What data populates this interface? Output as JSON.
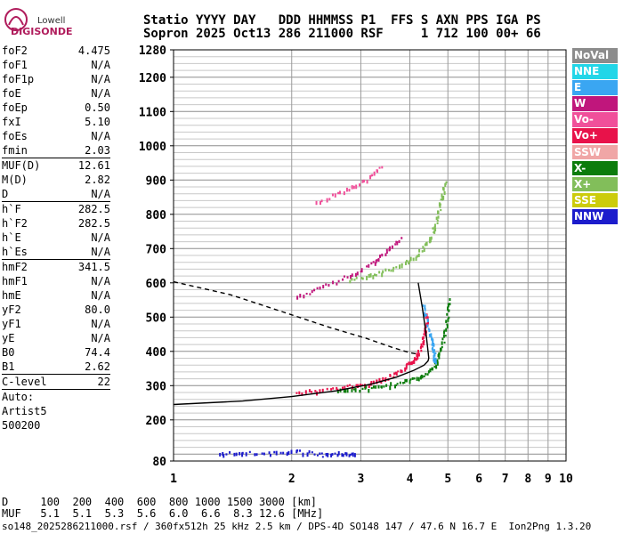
{
  "logo": {
    "line1": "Lowell",
    "line2": "DIGISONDE"
  },
  "header": {
    "labels": "Statio YYYY DAY   DDD HHMMSS P1  FFS S AXN PPS IGA PS",
    "values": "Sopron 2025 Oct13 286 211000 RSF     1 712 100 00+ 66"
  },
  "params": {
    "group1": [
      {
        "name": "foF2",
        "value": "4.475"
      },
      {
        "name": "foF1",
        "value": "N/A"
      },
      {
        "name": "foF1p",
        "value": "N/A"
      },
      {
        "name": "foE",
        "value": "N/A"
      },
      {
        "name": "foEp",
        "value": "0.50"
      },
      {
        "name": "fxI",
        "value": "5.10"
      },
      {
        "name": "foEs",
        "value": "N/A"
      },
      {
        "name": "fmin",
        "value": "2.03"
      }
    ],
    "group2": [
      {
        "name": "MUF(D)",
        "value": "12.61"
      },
      {
        "name": "M(D)",
        "value": "2.82"
      },
      {
        "name": "D",
        "value": "N/A"
      }
    ],
    "group3": [
      {
        "name": "h`F",
        "value": "282.5"
      },
      {
        "name": "h`F2",
        "value": "282.5"
      },
      {
        "name": "h`E",
        "value": "N/A"
      },
      {
        "name": "h`Es",
        "value": "N/A"
      }
    ],
    "group4": [
      {
        "name": "hmF2",
        "value": "341.5"
      },
      {
        "name": "hmF1",
        "value": "N/A"
      },
      {
        "name": "hmE",
        "value": "N/A"
      },
      {
        "name": "yF2",
        "value": "80.0"
      },
      {
        "name": "yF1",
        "value": "N/A"
      },
      {
        "name": "yE",
        "value": "N/A"
      },
      {
        "name": "B0",
        "value": "74.4"
      },
      {
        "name": "B1",
        "value": "2.62"
      }
    ],
    "group5": [
      {
        "name": "C-level",
        "value": "22"
      }
    ],
    "auto_label": "Auto:",
    "artist": "Artist5",
    "artist_version": "500200"
  },
  "legend": [
    {
      "label": "NoVal",
      "color": "#8c8c8c"
    },
    {
      "label": "NNE",
      "color": "#22d6e8"
    },
    {
      "label": "E",
      "color": "#3aa6f2"
    },
    {
      "label": "W",
      "color": "#c0167c"
    },
    {
      "label": "Vo-",
      "color": "#f0509a"
    },
    {
      "label": "Vo+",
      "color": "#e8124a"
    },
    {
      "label": "SSW",
      "color": "#f0a6a6"
    },
    {
      "label": "X-",
      "color": "#0c7c0c"
    },
    {
      "label": "X+",
      "color": "#82be5a"
    },
    {
      "label": "SSE",
      "color": "#cccc0c"
    },
    {
      "label": "NNW",
      "color": "#1c1ccc"
    }
  ],
  "muf_table": {
    "d_row": "D     100  200  400  600  800 1000 1500 3000 [km]",
    "muf_row": "MUF   5.1  5.1  5.3  5.6  6.0  6.6  8.3 12.6 [MHz]"
  },
  "footer": "so148_2025286211000.rsf / 360fx512h 25 kHz 2.5 km / DPS-4D SO148 147 / 47.6 N 16.7 E  Ion2Png 1.3.20",
  "chart_data": {
    "type": "scatter",
    "x_scale": "log",
    "xlim": [
      1,
      10
    ],
    "ylim": [
      80,
      1280
    ],
    "x_ticks": [
      "1",
      "2",
      "3",
      "4",
      "5",
      "6",
      "7",
      "8",
      "9",
      "10"
    ],
    "y_ticks": [
      "80",
      "200",
      "300",
      "400",
      "500",
      "600",
      "700",
      "800",
      "900",
      "1000",
      "1100",
      "1200",
      "1280"
    ],
    "grid": true,
    "series": [
      {
        "name": "Vo+",
        "color": "#e8124a",
        "x": [
          2.05,
          2.4,
          2.8,
          3.2,
          3.5,
          3.8,
          4.05,
          4.2,
          4.3,
          4.38,
          4.42
        ],
        "y": [
          282,
          290,
          300,
          312,
          325,
          345,
          375,
          400,
          430,
          470,
          520
        ]
      },
      {
        "name": "X-",
        "color": "#0c7c0c",
        "x": [
          2.6,
          3.0,
          3.4,
          3.8,
          4.2,
          4.5,
          4.7,
          4.85,
          4.95,
          5.02
        ],
        "y": [
          287,
          293,
          300,
          312,
          325,
          345,
          380,
          430,
          490,
          560
        ]
      },
      {
        "name": "W",
        "color": "#c0167c",
        "x": [
          2.05,
          2.4,
          2.8,
          3.2,
          3.5,
          3.8
        ],
        "y": [
          563,
          590,
          625,
          660,
          695,
          735
        ]
      },
      {
        "name": "Vo-",
        "color": "#f0509a",
        "x": [
          2.3,
          2.7,
          3.1,
          3.4
        ],
        "y": [
          838,
          870,
          905,
          945
        ]
      },
      {
        "name": "X+",
        "color": "#82be5a",
        "x": [
          2.8,
          3.2,
          3.6,
          4.0,
          4.3,
          4.55,
          4.7,
          4.82,
          4.92
        ],
        "y": [
          610,
          625,
          645,
          670,
          700,
          745,
          800,
          855,
          905
        ]
      },
      {
        "name": "E",
        "color": "#3aa6f2",
        "x": [
          4.3,
          4.45,
          4.55,
          4.6,
          4.62
        ],
        "y": [
          540,
          475,
          430,
          395,
          370
        ]
      },
      {
        "name": "NNW",
        "color": "#1c1ccc",
        "x": [
          1.3,
          1.5,
          1.8,
          2.1,
          2.4,
          2.7,
          2.9
        ],
        "y": [
          102,
          108,
          104,
          110,
          99,
          105,
          103
        ]
      }
    ],
    "profile_solid": {
      "x": [
        1,
        1.5,
        2,
        2.6,
        3.2,
        3.7,
        4.1,
        4.35,
        4.45,
        4.47,
        4.4,
        4.3,
        4.2
      ],
      "y": [
        245,
        255,
        268,
        285,
        305,
        325,
        345,
        360,
        372,
        380,
        450,
        530,
        600
      ]
    },
    "profile_dashed": {
      "x": [
        1,
        1.4,
        1.9,
        2.5,
        3.1,
        3.6,
        4.0,
        4.2
      ],
      "y": [
        603,
        565,
        515,
        470,
        438,
        412,
        396,
        392
      ]
    }
  }
}
